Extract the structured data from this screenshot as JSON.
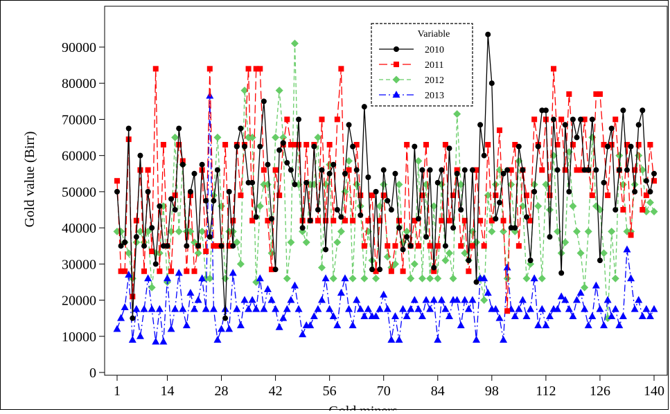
{
  "chart_data": {
    "type": "line",
    "title": "",
    "xlabel": "Gold miners",
    "ylabel": "Gold value  (Birr)",
    "xlim": [
      1,
      140
    ],
    "ylim": [
      0,
      95000
    ],
    "xticks": [
      1,
      14,
      28,
      42,
      56,
      70,
      84,
      98,
      112,
      126,
      140
    ],
    "yticks": [
      0,
      10000,
      20000,
      30000,
      40000,
      50000,
      60000,
      70000,
      80000,
      90000
    ],
    "grid": false,
    "legend": {
      "title": "Variable",
      "placement": "top-center"
    },
    "x": [
      1,
      2,
      3,
      4,
      5,
      6,
      7,
      8,
      9,
      10,
      11,
      12,
      13,
      14,
      15,
      16,
      17,
      18,
      19,
      20,
      21,
      22,
      23,
      24,
      25,
      26,
      27,
      28,
      29,
      30,
      31,
      32,
      33,
      34,
      35,
      36,
      37,
      38,
      39,
      40,
      41,
      42,
      43,
      44,
      45,
      46,
      47,
      48,
      49,
      50,
      51,
      52,
      53,
      54,
      55,
      56,
      57,
      58,
      59,
      60,
      61,
      62,
      63,
      64,
      65,
      66,
      67,
      68,
      69,
      70,
      71,
      72,
      73,
      74,
      75,
      76,
      77,
      78,
      79,
      80,
      81,
      82,
      83,
      84,
      85,
      86,
      87,
      88,
      89,
      90,
      91,
      92,
      93,
      94,
      95,
      96,
      97,
      98,
      99,
      100,
      101,
      102,
      103,
      104,
      105,
      106,
      107,
      108,
      109,
      110,
      111,
      112,
      113,
      114,
      115,
      116,
      117,
      118,
      119,
      120,
      121,
      122,
      123,
      124,
      125,
      126,
      127,
      128,
      129,
      130,
      131,
      132,
      133,
      134,
      135,
      136,
      137,
      138,
      139,
      140
    ],
    "series": [
      {
        "name": "2010",
        "color": "#000000",
        "marker": "circle",
        "dash": "solid",
        "values": [
          50000,
          35000,
          36000,
          67500,
          15000,
          37500,
          60000,
          35000,
          50000,
          40000,
          30000,
          46000,
          35000,
          35000,
          48000,
          45000,
          67500,
          57500,
          35000,
          50000,
          55000,
          35000,
          57500,
          47500,
          37500,
          47500,
          56000,
          35000,
          15000,
          50000,
          35000,
          62500,
          67500,
          62500,
          52500,
          52500,
          43000,
          62500,
          75000,
          57500,
          42500,
          28500,
          61500,
          63500,
          58000,
          56000,
          52000,
          70000,
          40000,
          52500,
          42000,
          62500,
          45000,
          56000,
          34000,
          55000,
          57500,
          45000,
          43000,
          55000,
          68500,
          62500,
          56000,
          43500,
          73500,
          54000,
          28500,
          50000,
          28500,
          56000,
          47500,
          45000,
          55000,
          40000,
          34000,
          37500,
          35000,
          62500,
          42500,
          56000,
          37500,
          56000,
          29000,
          52500,
          56000,
          35000,
          62000,
          40000,
          55000,
          45000,
          56000,
          31000,
          56000,
          25000,
          68500,
          60000,
          93500,
          80000,
          42500,
          47000,
          55000,
          56000,
          40000,
          40000,
          62500,
          56000,
          43000,
          31000,
          50000,
          62500,
          72500,
          72500,
          37500,
          70000,
          56000,
          27500,
          68500,
          50000,
          70000,
          65000,
          70000,
          56000,
          56000,
          70000,
          56000,
          31000,
          52500,
          62500,
          67500,
          45000,
          56000,
          72500,
          56000,
          62500,
          50000,
          68500,
          72500,
          53000,
          50000,
          55000
        ]
      },
      {
        "name": "2011",
        "color": "#ff0000",
        "marker": "square",
        "dash": "long-dash",
        "values": [
          53000,
          28000,
          28000,
          64500,
          21000,
          42000,
          56000,
          28000,
          56000,
          33500,
          84000,
          28000,
          63000,
          35000,
          28000,
          49000,
          63000,
          58500,
          28000,
          49000,
          28000,
          35000,
          56000,
          33500,
          84000,
          35000,
          35000,
          35000,
          63000,
          35000,
          42000,
          63000,
          49000,
          63000,
          84000,
          42000,
          84000,
          84000,
          56000,
          42000,
          28500,
          56000,
          49000,
          63000,
          70000,
          63000,
          63000,
          63000,
          42000,
          63000,
          42000,
          63000,
          42000,
          70000,
          42000,
          63000,
          42000,
          70000,
          84000,
          42000,
          56000,
          42000,
          63000,
          49000,
          35000,
          42000,
          49000,
          28000,
          42000,
          49000,
          35000,
          28000,
          35000,
          42000,
          28000,
          63000,
          35000,
          42000,
          35000,
          49000,
          63000,
          35000,
          28000,
          35000,
          42000,
          63000,
          42000,
          49000,
          56000,
          35000,
          42000,
          28000,
          35000,
          56000,
          42000,
          35000,
          63000,
          42000,
          49000,
          67000,
          42000,
          17000,
          56000,
          63000,
          35000,
          56000,
          49000,
          42000,
          70000,
          63000,
          56000,
          70000,
          49000,
          84000,
          63000,
          70000,
          56000,
          77000,
          63000,
          56000,
          56000,
          70000,
          56000,
          49000,
          77000,
          77000,
          63000,
          49000,
          63000,
          70000,
          56000,
          45000,
          63000,
          38000,
          56000,
          63000,
          45000,
          49000,
          63000,
          53000
        ]
      },
      {
        "name": "2012",
        "color": "#66cc66",
        "marker": "diamond",
        "dash": "dashed",
        "values": [
          39000,
          39000,
          36000,
          33000,
          26000,
          36000,
          39000,
          36000,
          39000,
          23500,
          33000,
          33000,
          46000,
          25000,
          39000,
          65000,
          39000,
          57500,
          39000,
          39000,
          36000,
          33000,
          39000,
          26000,
          26000,
          49000,
          65000,
          46000,
          26000,
          39000,
          39000,
          36000,
          30000,
          78000,
          65000,
          65000,
          25000,
          46000,
          52000,
          52000,
          33000,
          65000,
          78000,
          65000,
          26000,
          36000,
          91000,
          52000,
          39000,
          36000,
          52000,
          52000,
          65000,
          29000,
          52000,
          57500,
          26000,
          36000,
          39000,
          50000,
          58500,
          26000,
          52000,
          46000,
          26000,
          39000,
          31000,
          26000,
          46000,
          52000,
          32000,
          29000,
          30000,
          52000,
          36000,
          39000,
          26000,
          30000,
          58500,
          26000,
          52000,
          26000,
          46000,
          26000,
          52000,
          31000,
          33000,
          26000,
          71500,
          52000,
          33000,
          31000,
          39000,
          36000,
          26000,
          20000,
          49000,
          39000,
          52000,
          56000,
          39000,
          26000,
          52000,
          39000,
          58500,
          46000,
          26000,
          30000,
          52000,
          46000,
          26000,
          52000,
          45000,
          60000,
          39000,
          33000,
          36000,
          61000,
          46000,
          39000,
          33000,
          23500,
          39000,
          65000,
          46000,
          45000,
          33000,
          15000,
          39000,
          26000,
          60000,
          52000,
          39000,
          39000,
          52000,
          60000,
          56000,
          44500,
          47000,
          44500
        ]
      },
      {
        "name": "2013",
        "color": "#0000ff",
        "marker": "triangle",
        "dash": "dash-dot",
        "values": [
          12000,
          15000,
          18000,
          27000,
          9000,
          17500,
          10000,
          17500,
          26000,
          17500,
          8500,
          17500,
          8500,
          26000,
          12000,
          17500,
          27500,
          17500,
          13000,
          22000,
          17500,
          20000,
          26000,
          17500,
          76500,
          17500,
          9000,
          12000,
          17500,
          12000,
          27500,
          17500,
          13000,
          20000,
          17500,
          20000,
          17500,
          26000,
          17500,
          23000,
          20000,
          17500,
          12500,
          15000,
          17500,
          20000,
          24000,
          17500,
          10500,
          13000,
          13000,
          15500,
          17500,
          20000,
          26000,
          17500,
          15500,
          13000,
          22000,
          26000,
          17500,
          13000,
          20000,
          17500,
          15500,
          17500,
          15500,
          15500,
          17500,
          21500,
          17500,
          9000,
          15500,
          9000,
          17500,
          15500,
          17500,
          20000,
          17500,
          15500,
          20000,
          17500,
          20000,
          9000,
          20000,
          17500,
          15500,
          20000,
          20000,
          13000,
          20000,
          17500,
          20000,
          9000,
          26000,
          26000,
          22000,
          17500,
          17500,
          15000,
          9000,
          29000,
          17500,
          15500,
          17500,
          20000,
          15500,
          17500,
          26000,
          13000,
          17500,
          13000,
          15500,
          17500,
          17500,
          21000,
          20000,
          17500,
          15500,
          20000,
          22000,
          17500,
          13000,
          15500,
          24000,
          17500,
          13000,
          20000,
          15500,
          17500,
          13000,
          15500,
          34000,
          26000,
          17500,
          20000,
          15500,
          17500,
          15500,
          17500
        ]
      }
    ]
  }
}
